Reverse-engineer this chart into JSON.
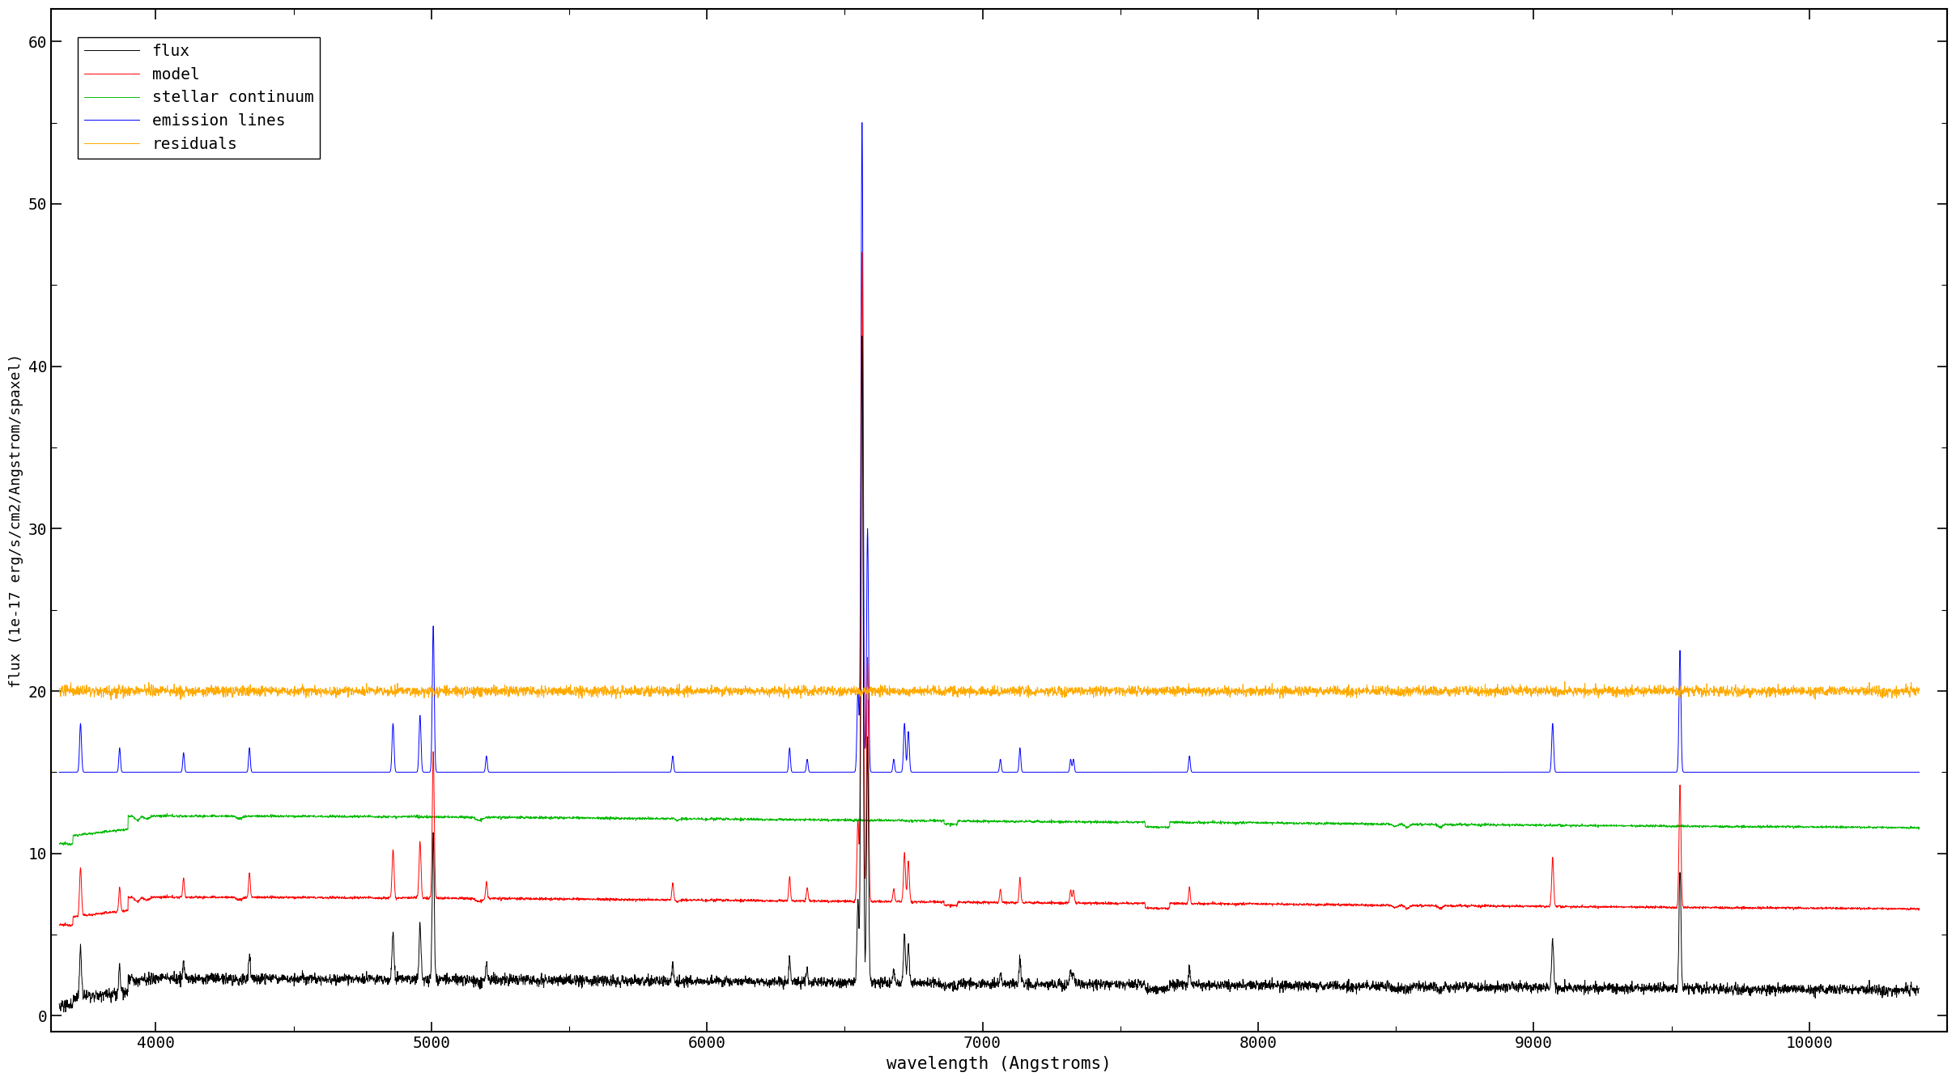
{
  "xlabel": "wavelength (Angstroms)",
  "ylabel": "flux (1e-17 erg/s/cm2/Angstrom/spaxel)",
  "xlim": [
    3620,
    10500
  ],
  "ylim": [
    -1,
    62
  ],
  "yticks": [
    0,
    10,
    20,
    30,
    40,
    50,
    60
  ],
  "xticks": [
    4000,
    5000,
    6000,
    7000,
    8000,
    9000,
    10000
  ],
  "colors": {
    "flux": "#000000",
    "model": "#ff0000",
    "stellar": "#00bb00",
    "emission": "#0000ff",
    "residuals": "#ffaa00"
  },
  "legend_labels": [
    "flux",
    "model",
    "stellar continuum",
    "emission lines",
    "residuals"
  ],
  "offsets": {
    "flux": 0,
    "model": 5,
    "stellar": 10,
    "emission": 15,
    "residuals": 20
  },
  "line_width": 0.7,
  "background_color": "#ffffff",
  "wave_start": 3650,
  "wave_end": 10400,
  "wave_step": 1.0
}
